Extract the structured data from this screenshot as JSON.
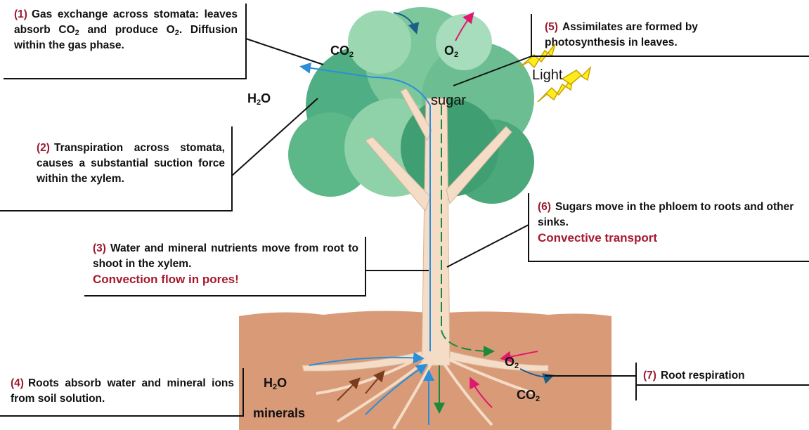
{
  "callouts": [
    {
      "number": "(1)",
      "text": [
        "Gas exchange across stomata: leaves absorb CO",
        "2",
        " and produce O",
        "2",
        ". Diffusion within the gas phase."
      ]
    },
    {
      "number": "(2)",
      "text": [
        "Transpiration across stomata, causes a substantial suction force within the xylem."
      ]
    },
    {
      "number": "(3)",
      "text": [
        "Water and mineral nutrients move from root to shoot in the xylem."
      ],
      "emphasis": "Convection flow in pores!"
    },
    {
      "number": "(4)",
      "text": [
        "Roots absorb water and mineral ions from soil solution."
      ]
    },
    {
      "number": "(5)",
      "text": [
        "Assimilates are formed by photosynthesis in leaves."
      ]
    },
    {
      "number": "(6)",
      "text": [
        "Sugars move in the phloem to roots and other sinks."
      ],
      "emphasis": "Convective transport"
    },
    {
      "number": "(7)",
      "text": [
        "Root respiration"
      ]
    }
  ],
  "labels": [
    {
      "text": [
        "CO",
        "2"
      ]
    },
    {
      "text": [
        "O",
        "2"
      ]
    },
    {
      "text": [
        "H",
        "2",
        "O"
      ]
    },
    {
      "text": [
        "sugar"
      ]
    },
    {
      "text": [
        "Light"
      ]
    },
    {
      "text": [
        "O",
        "2"
      ]
    },
    {
      "text": [
        "CO",
        "2"
      ]
    },
    {
      "text": [
        "H",
        "2",
        "O"
      ]
    },
    {
      "text": [
        "minerals"
      ]
    }
  ]
}
